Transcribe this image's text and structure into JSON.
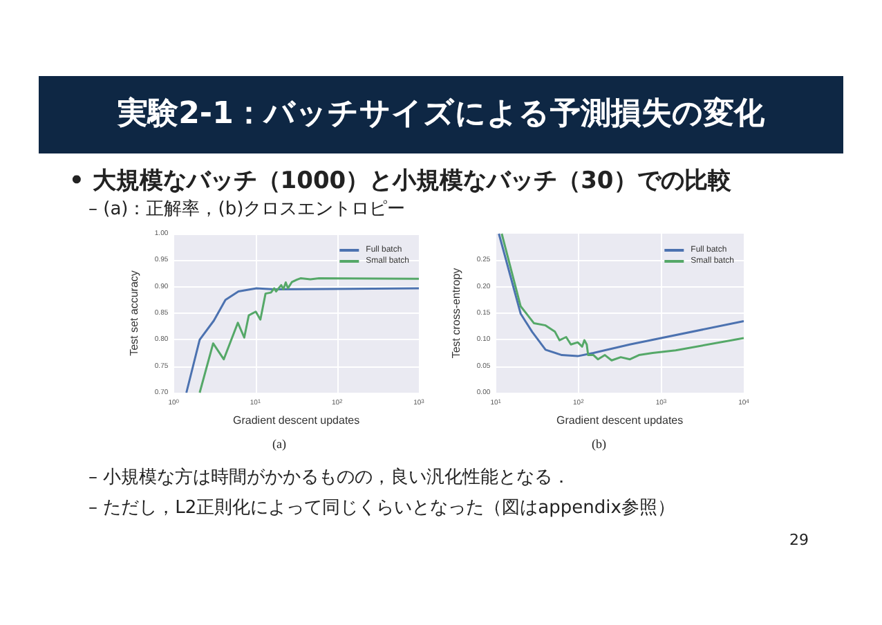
{
  "chart_data": [
    {
      "type": "line",
      "title": "実験2-1：バッチサイズによる予測損失の変化",
      "xlabel": "Gradient descent updates",
      "ylabel": "Test set accuracy",
      "annotations": [
        "• 大規模なバッチ（1000）と小規模なバッチ（30）での比較",
        "– (a)：正解率，(b)クロスエントロピー",
        "(a)",
        "– 小規模な方は時間がかかるものの，良い汎化性能となる．",
        "– ただし，L2正則化によって同じくらいとなった（図はappendix参照）",
        "29"
      ],
      "series": [
        {
          "name": "Full batch",
          "color": "#4c72b0",
          "x": [
            1.43,
            2.08,
            3.1,
            4.3,
            6.2,
            10.3,
            17,
            1000
          ],
          "values": [
            0.7,
            0.8,
            0.836,
            0.875,
            0.891,
            0.897,
            0.895,
            0.897
          ]
        },
        {
          "name": "Small batch",
          "color": "#55a868",
          "x": [
            2.08,
            3.04,
            4.1,
            6.1,
            7.3,
            8.3,
            10.1,
            11.5,
            13.3,
            15.5,
            17,
            17.9,
            20.7,
            22,
            23.5,
            25,
            28,
            32,
            36,
            47,
            60,
            1000
          ],
          "values": [
            0.7,
            0.793,
            0.763,
            0.832,
            0.804,
            0.846,
            0.853,
            0.838,
            0.887,
            0.889,
            0.897,
            0.891,
            0.903,
            0.895,
            0.908,
            0.897,
            0.909,
            0.913,
            0.916,
            0.914,
            0.916,
            0.915
          ]
        }
      ],
      "log": "x",
      "xlim": [
        1,
        1000
      ],
      "xticks": [
        {
          "value": 1,
          "label": "10$^{0}$"
        },
        {
          "value": 10,
          "label": "10$^{1}$"
        },
        {
          "value": 100,
          "label": "10$^{2}$"
        },
        {
          "value": 1000,
          "label": "10$^{3}$"
        }
      ],
      "ylim": [
        0.7,
        1.0
      ],
      "yticks": [
        {
          "value": 0.7,
          "label": "0.70"
        },
        {
          "value": 0.75,
          "label": "0.75"
        },
        {
          "value": 0.8,
          "label": "0.80"
        },
        {
          "value": 0.85,
          "label": "0.85"
        },
        {
          "value": 0.9,
          "label": "0.90"
        },
        {
          "value": 0.95,
          "label": "0.95"
        },
        {
          "value": 1.0,
          "label": "1.00"
        }
      ],
      "grid": true,
      "legend": "top right",
      "marker": "none",
      "line_style": "solid"
    },
    {
      "type": "line",
      "xlabel": "Gradient descent updates",
      "ylabel": "Test cross-entropy",
      "annotations": [
        "(b)"
      ],
      "series": [
        {
          "name": "Full batch",
          "color": "#4c72b0",
          "x": [
            10.9,
            20,
            27.5,
            40,
            63,
            98,
            152,
            418,
            10000
          ],
          "values": [
            0.3,
            0.149,
            0.115,
            0.081,
            0.071,
            0.069,
            0.075,
            0.091,
            0.135
          ]
        },
        {
          "name": "Small batch",
          "color": "#55a868",
          "x": [
            11.8,
            20,
            29,
            40,
            52,
            59,
            71,
            81,
            98,
            111,
            118,
            126,
            131,
            152,
            172,
            209,
            252,
            325,
            420,
            540,
            790,
            1500,
            10000
          ],
          "values": [
            0.3,
            0.163,
            0.131,
            0.127,
            0.115,
            0.099,
            0.105,
            0.091,
            0.095,
            0.087,
            0.099,
            0.091,
            0.071,
            0.071,
            0.063,
            0.071,
            0.061,
            0.067,
            0.063,
            0.071,
            0.075,
            0.08,
            0.103
          ]
        }
      ],
      "log": "x",
      "xlim": [
        10,
        10000
      ],
      "xticks": [
        {
          "value": 10,
          "label": "10$^{1}$"
        },
        {
          "value": 100,
          "label": "10$^{2}$"
        },
        {
          "value": 1000,
          "label": "10$^{3}$"
        },
        {
          "value": 10000,
          "label": "10$^{4}$"
        }
      ],
      "ylim": [
        0,
        0.3
      ],
      "yticks": [
        {
          "value": 0,
          "label": "0.00"
        },
        {
          "value": 0.05,
          "label": "0.05"
        },
        {
          "value": 0.1,
          "label": "0.10"
        },
        {
          "value": 0.15,
          "label": "0.15"
        },
        {
          "value": 0.2,
          "label": "0.20"
        },
        {
          "value": 0.25,
          "label": "0.25"
        }
      ],
      "grid": true,
      "legend": "top right",
      "marker": "none",
      "line_style": "solid"
    }
  ]
}
